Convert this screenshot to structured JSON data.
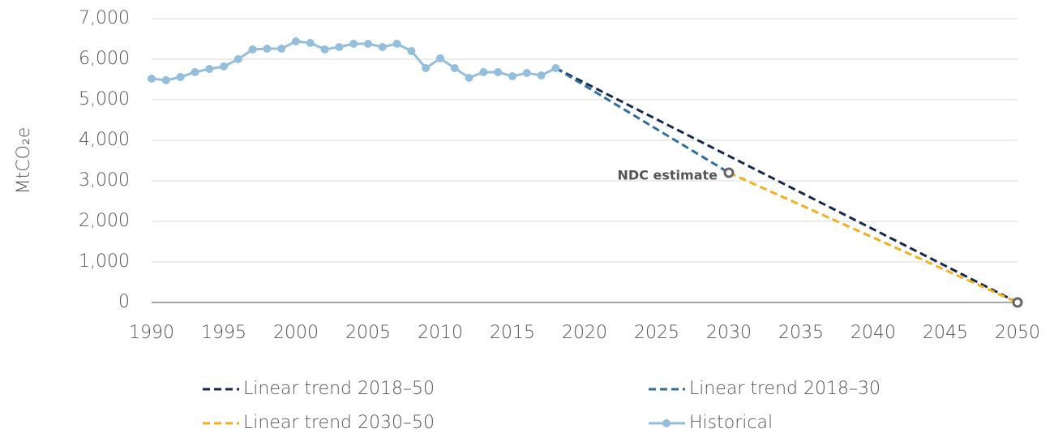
{
  "chart_data": {
    "type": "line",
    "y_label": "MtCO₂e",
    "xlim": [
      1990,
      2050
    ],
    "xticks": [
      1990,
      1995,
      2000,
      2005,
      2010,
      2015,
      2020,
      2025,
      2030,
      2035,
      2040,
      2045,
      2050
    ],
    "ylim": [
      0,
      7000
    ],
    "yticks": [
      0,
      {
        "value": 1000,
        "label": "1,000"
      },
      {
        "value": 2000,
        "label": "2,000"
      },
      {
        "value": 3000,
        "label": "3,000"
      },
      {
        "value": 4000,
        "label": "4,000"
      },
      {
        "value": 5000,
        "label": "5,000"
      },
      {
        "value": 6000,
        "label": "6,000"
      },
      {
        "value": 7000,
        "label": "7,000"
      }
    ],
    "grid": true,
    "series": [
      {
        "name": "Linear trend 2018–50",
        "color": "#17294a",
        "dashed": true,
        "x": [
          2018,
          2050
        ],
        "values": [
          5780,
          0
        ]
      },
      {
        "name": "Linear trend 2018–30",
        "color": "#2e6ea0",
        "dashed": true,
        "x": [
          2018,
          2030
        ],
        "values": [
          5780,
          3200
        ]
      },
      {
        "name": "Linear trend 2030–50",
        "color": "#f4b01f",
        "dashed": true,
        "x": [
          2030,
          2050
        ],
        "values": [
          3200,
          0
        ]
      },
      {
        "name": "Historical",
        "color": "#93bedc",
        "dashed": false,
        "marker": "circle",
        "x": [
          1990,
          1991,
          1992,
          1993,
          1994,
          1995,
          1996,
          1997,
          1998,
          1999,
          2000,
          2001,
          2002,
          2003,
          2004,
          2005,
          2006,
          2007,
          2008,
          2009,
          2010,
          2011,
          2012,
          2013,
          2014,
          2015,
          2016,
          2017,
          2018
        ],
        "values": [
          5520,
          5480,
          5560,
          5680,
          5760,
          5820,
          6000,
          6240,
          6260,
          6260,
          6440,
          6400,
          6240,
          6300,
          6380,
          6380,
          6300,
          6380,
          6200,
          5780,
          6020,
          5780,
          5540,
          5680,
          5680,
          5580,
          5660,
          5600,
          5780
        ]
      }
    ],
    "markers": [
      {
        "x": 2030,
        "y": 3200,
        "label": "NDC estimate",
        "color": "#666666"
      },
      {
        "x": 2050,
        "y": 0,
        "color": "#666666"
      }
    ]
  }
}
